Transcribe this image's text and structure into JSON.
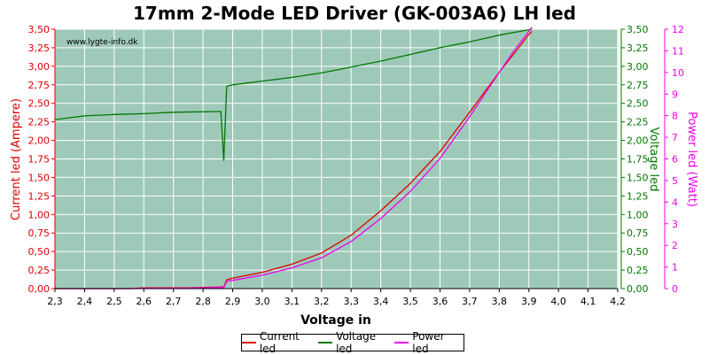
{
  "watermark": "www.lygte-info.dk",
  "colors": {
    "current": "#dd0000",
    "voltage": "#007700",
    "power": "#ee00ee",
    "plot_bg": "#9ec9b9",
    "grid": "#ffffff"
  },
  "chart_data": {
    "type": "line",
    "title": "17mm 2-Mode LED Driver (GK-003A6) LH led",
    "xlabel": "Voltage in",
    "ylabel_left": "Current led (Ampere)",
    "ylabel_right1": "Voltage led",
    "ylabel_right2": "Power led (Watt)",
    "xlim": [
      2.3,
      4.2
    ],
    "ylim_left": [
      0,
      3.5
    ],
    "ylim_right1": [
      0,
      3.5
    ],
    "ylim_right2": [
      0,
      12
    ],
    "x_ticks": [
      "2,3",
      "2,4",
      "2,5",
      "2,6",
      "2,7",
      "2,8",
      "2,9",
      "3,0",
      "3,1",
      "3,2",
      "3,3",
      "3,4",
      "3,5",
      "3,6",
      "3,7",
      "3,8",
      "3,9",
      "4,0",
      "4,1",
      "4,2"
    ],
    "y_left_ticks": [
      "0,00",
      "0,25",
      "0,50",
      "0,75",
      "1,00",
      "1,25",
      "1,50",
      "1,75",
      "2,00",
      "2,25",
      "2,50",
      "2,75",
      "3,00",
      "3,25",
      "3,50"
    ],
    "y_right1_ticks": [
      "0,00",
      "0,25",
      "0,50",
      "0,75",
      "1,00",
      "1,25",
      "1,50",
      "1,75",
      "2,00",
      "2,25",
      "2,50",
      "2,75",
      "3,00",
      "3,25",
      "3,50"
    ],
    "y_right2_ticks": [
      "0",
      "1",
      "2",
      "3",
      "4",
      "5",
      "6",
      "7",
      "8",
      "9",
      "10",
      "11",
      "12"
    ],
    "grid": true,
    "legend_position": "bottom",
    "series": [
      {
        "name": "Current led",
        "axis": "left",
        "x": [
          2.3,
          2.55,
          2.6,
          2.75,
          2.85,
          2.87,
          2.88,
          2.9,
          3.0,
          3.1,
          3.2,
          3.3,
          3.4,
          3.5,
          3.6,
          3.7,
          3.8,
          3.85,
          3.9,
          3.91
        ],
        "y": [
          0.0,
          0.0,
          0.01,
          0.01,
          0.02,
          0.02,
          0.12,
          0.14,
          0.22,
          0.33,
          0.48,
          0.72,
          1.05,
          1.42,
          1.85,
          2.38,
          2.92,
          3.17,
          3.43,
          3.47
        ]
      },
      {
        "name": "Voltage led",
        "axis": "right1",
        "x": [
          2.3,
          2.4,
          2.5,
          2.6,
          2.7,
          2.86,
          2.87,
          2.88,
          2.9,
          3.0,
          3.1,
          3.2,
          3.3,
          3.4,
          3.5,
          3.6,
          3.7,
          3.8,
          3.91
        ],
        "y": [
          2.28,
          2.33,
          2.35,
          2.36,
          2.38,
          2.39,
          1.73,
          2.73,
          2.75,
          2.8,
          2.85,
          2.91,
          2.99,
          3.07,
          3.16,
          3.25,
          3.33,
          3.42,
          3.5
        ]
      },
      {
        "name": "Power led",
        "axis": "right2",
        "x": [
          2.3,
          2.55,
          2.6,
          2.75,
          2.85,
          2.87,
          2.88,
          2.9,
          3.0,
          3.1,
          3.2,
          3.3,
          3.4,
          3.5,
          3.6,
          3.7,
          3.8,
          3.85,
          3.9,
          3.91
        ],
        "y": [
          0.0,
          0.0,
          0.02,
          0.02,
          0.05,
          0.05,
          0.33,
          0.38,
          0.62,
          0.96,
          1.42,
          2.18,
          3.24,
          4.5,
          6.02,
          7.95,
          10.0,
          11.0,
          11.9,
          12.1
        ]
      }
    ]
  }
}
